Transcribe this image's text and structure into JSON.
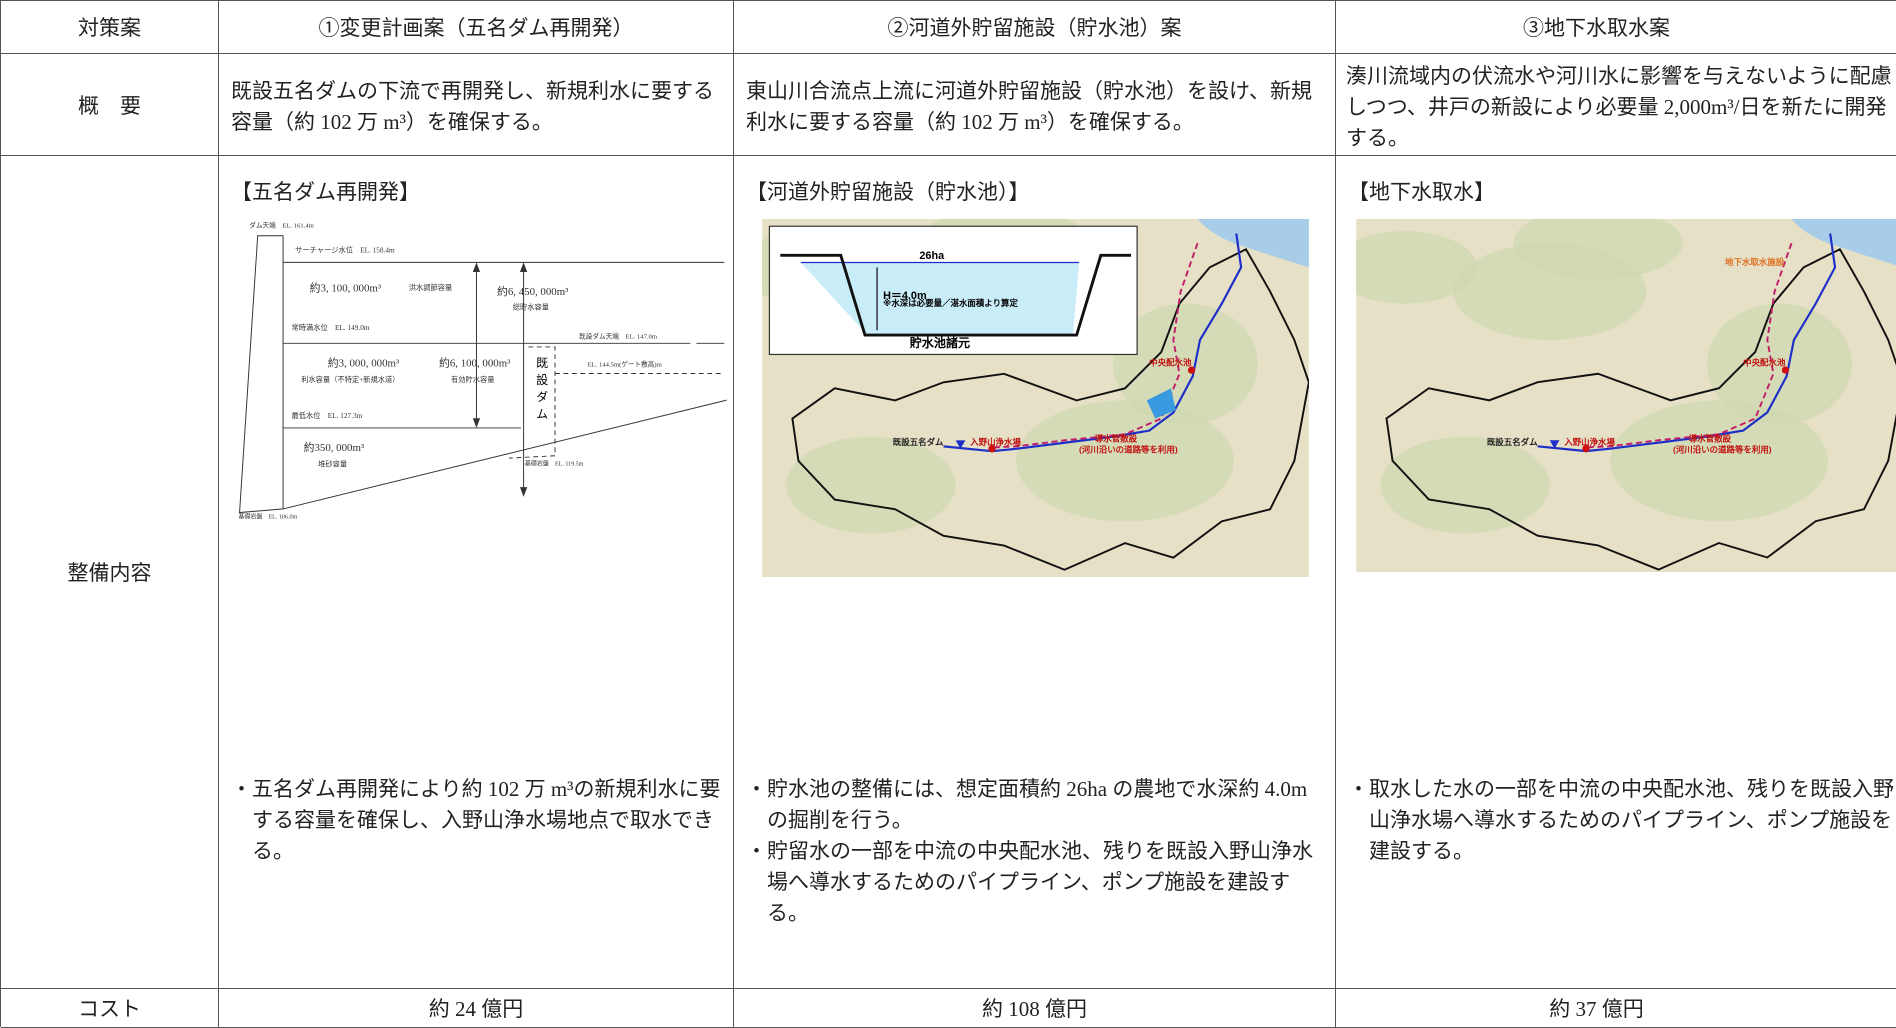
{
  "table": {
    "headers": [
      "対策案",
      "①変更計画案（五名ダム再開発）",
      "②河道外貯留施設（貯水池）案",
      "③地下水取水案"
    ],
    "overview": {
      "label": "概　要",
      "cells": [
        "既設五名ダムの下流で再開発し、新規利水に要する容量（約 102 万 m³）を確保する。",
        "東山川合流点上流に河道外貯留施設（貯水池）を設け、新規利水に要する容量（約 102 万 m³）を確保する。",
        "湊川流域内の伏流水や河川水に影響を与えないように配慮しつつ、井戸の新設により必要量 2,000m³/日を新たに開発する。"
      ]
    },
    "details": {
      "label": "整備内容",
      "options": [
        {
          "heading": "【五名ダム再開発】",
          "bullets": [
            "・五名ダム再開発により約 102 万 m³の新規利水に要する容量を確保し、入野山浄水場地点で取水できる。"
          ]
        },
        {
          "heading": "【河道外貯留施設（貯水池）】",
          "bullets": [
            "・貯水池の整備には、想定面積約 26ha の農地で水深約 4.0m の掘削を行う。",
            "・貯留水の一部を中流の中央配水池、残りを既設入野山浄水場へ導水するためのパイプライン、ポンプ施設を建設する。"
          ]
        },
        {
          "heading": "【地下水取水】",
          "bullets": [
            "・取水した水の一部を中流の中央配水池、残りを既設入野山浄水場へ導水するためのパイプライン、ポンプ施設を建設する。"
          ]
        }
      ]
    },
    "cost": {
      "label": "コスト",
      "cells": [
        "約 24 億円",
        "約 108 億円",
        "約 37 億円"
      ]
    }
  },
  "dam_diagram": {
    "labels": [
      "ダム天端　EL. 161.4m",
      "サーチャージ水位　EL. 158.4m",
      "約3, 100, 000m³",
      "洪水調節容量",
      "約6, 450, 000m³",
      "総貯水容量",
      "常時満水位　EL. 149.0m",
      "既設ダム天端　EL. 147.0m",
      "約3, 000, 000m³",
      "約6, 100, 000m³",
      "利水容量（不特定+新規水道）",
      "有効貯水容量",
      "既設ダム",
      "EL. 144.5m(ゲート敷高)m",
      "最低水位　EL. 127.3m",
      "約350, 000m³",
      "堆砂容量",
      "基礎岩盤　EL. 119.5m",
      "基礎岩盤　EL. 106.0m"
    ]
  },
  "reservoir_specs": {
    "area": "26ha",
    "depth": "H＝4.0m",
    "note": "※水深は必要量／湛水面積より算定",
    "caption": "貯水池諸元"
  },
  "map2": {
    "labels": [
      "中央配水池",
      "既設五名ダム",
      "入野山浄水場",
      "導水管敷設",
      "(河川沿いの道路等を利用)"
    ]
  },
  "map3": {
    "labels": [
      "地下水取水施設",
      "中央配水池",
      "既設五名ダム",
      "入野山浄水場",
      "導水管敷設",
      "(河川沿いの道路等を利用)"
    ]
  }
}
